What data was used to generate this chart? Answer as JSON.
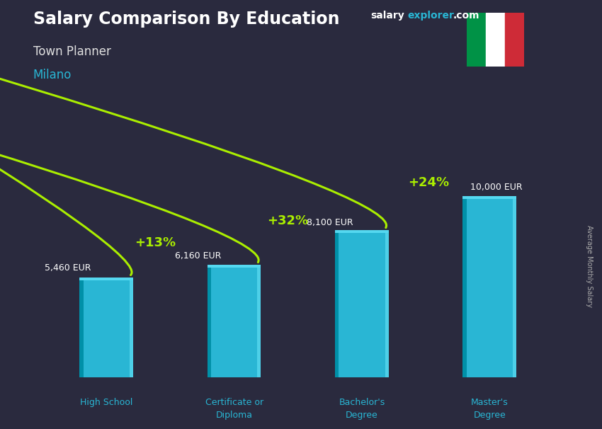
{
  "title": "Salary Comparison By Education",
  "subtitle": "Town Planner",
  "city": "Milano",
  "ylabel": "Average Monthly Salary",
  "website_part1": "salary",
  "website_part2": "explorer",
  "website_part3": ".com",
  "categories": [
    "High School",
    "Certificate or\nDiploma",
    "Bachelor's\nDegree",
    "Master's\nDegree"
  ],
  "values": [
    5460,
    6160,
    8100,
    10000
  ],
  "value_labels": [
    "5,460 EUR",
    "6,160 EUR",
    "8,100 EUR",
    "10,000 EUR"
  ],
  "pct_labels": [
    "+13%",
    "+32%",
    "+24%"
  ],
  "bar_color_main": "#29b6d4",
  "bar_color_light": "#4dd0e8",
  "bar_color_dark": "#0090a8",
  "bar_color_top": "#55d8f0",
  "bg_color": "#2a2a3e",
  "title_color": "#ffffff",
  "subtitle_color": "#e0e0e0",
  "city_color": "#29b6d4",
  "value_color": "#ffffff",
  "pct_color": "#aaee00",
  "arrow_color": "#aaee00",
  "website_color1": "#ffffff",
  "website_color2": "#29b6d4",
  "italy_green": "#009246",
  "italy_white": "#ffffff",
  "italy_red": "#ce2b37",
  "bar_width": 0.42,
  "ylim_max": 12500,
  "x_positions": [
    0,
    1,
    2,
    3
  ]
}
